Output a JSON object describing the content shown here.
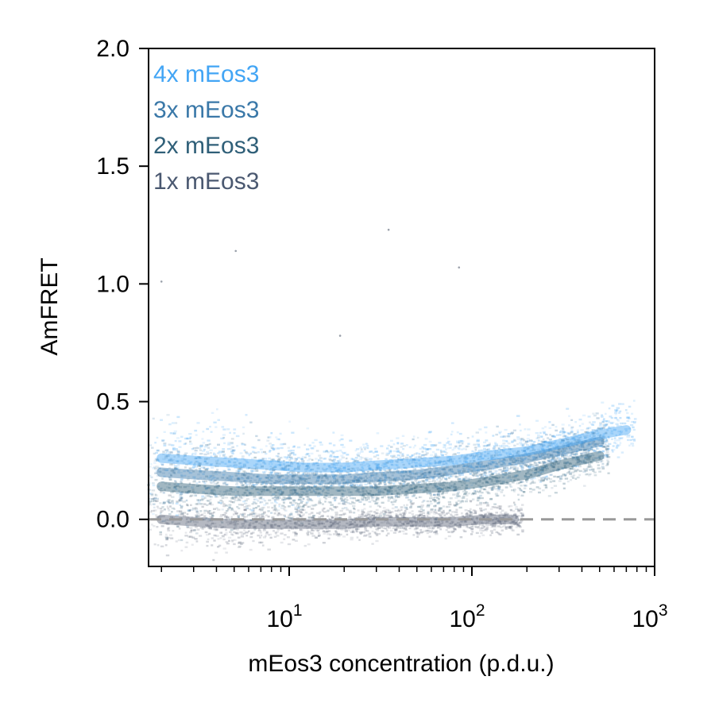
{
  "chart_data": {
    "type": "scatter",
    "title": "",
    "xlabel": "mEos3 concentration (p.d.u.)",
    "ylabel": "AmFRET",
    "x_scale": "log",
    "xlim": [
      1.7,
      1000
    ],
    "ylim": [
      -0.2,
      2.0
    ],
    "grid": false,
    "x_ticks": [
      {
        "value": 10,
        "base": "10",
        "exp": "1"
      },
      {
        "value": 100,
        "base": "10",
        "exp": "2"
      },
      {
        "value": 1000,
        "base": "10",
        "exp": "3"
      }
    ],
    "y_ticks": [
      {
        "value": 0.0,
        "label": "0.0"
      },
      {
        "value": 0.5,
        "label": "0.5"
      },
      {
        "value": 1.0,
        "label": "1.0"
      },
      {
        "value": 1.5,
        "label": "1.5"
      },
      {
        "value": 2.0,
        "label": "2.0"
      }
    ],
    "reference_line": {
      "y": 0.0,
      "style": "dashed",
      "color": "#999999"
    },
    "legend": {
      "placement": "top-left",
      "entries": [
        {
          "label": "4x mEos3",
          "color": "#42a5f5"
        },
        {
          "label": "3x mEos3",
          "color": "#3a78a8"
        },
        {
          "label": "2x mEos3",
          "color": "#2f5f78"
        },
        {
          "label": "1x mEos3",
          "color": "#4a5870"
        }
      ]
    },
    "series": [
      {
        "name": "1x mEos3",
        "color": "#5a6478",
        "x": [
          2,
          3,
          5,
          8,
          12,
          20,
          30,
          50,
          80,
          120,
          170
        ],
        "y": [
          0.0,
          -0.01,
          -0.02,
          -0.02,
          -0.02,
          -0.02,
          -0.01,
          -0.01,
          -0.01,
          0.0,
          0.0
        ]
      },
      {
        "name": "2x mEos3",
        "color": "#2f5f78",
        "x": [
          2,
          3,
          5,
          8,
          12,
          20,
          30,
          50,
          80,
          120,
          200,
          300,
          500
        ],
        "y": [
          0.14,
          0.13,
          0.12,
          0.12,
          0.12,
          0.12,
          0.12,
          0.13,
          0.14,
          0.16,
          0.19,
          0.23,
          0.27
        ]
      },
      {
        "name": "3x mEos3",
        "color": "#3a78a8",
        "x": [
          2,
          3,
          5,
          8,
          12,
          20,
          30,
          50,
          80,
          120,
          200,
          300,
          500
        ],
        "y": [
          0.2,
          0.19,
          0.18,
          0.17,
          0.17,
          0.17,
          0.18,
          0.19,
          0.21,
          0.23,
          0.26,
          0.29,
          0.33
        ]
      },
      {
        "name": "4x mEos3",
        "color": "#42a5f5",
        "x": [
          2,
          3,
          5,
          8,
          12,
          20,
          30,
          50,
          80,
          120,
          200,
          300,
          500,
          700
        ],
        "y": [
          0.26,
          0.25,
          0.24,
          0.23,
          0.22,
          0.22,
          0.23,
          0.24,
          0.25,
          0.27,
          0.29,
          0.32,
          0.36,
          0.38
        ]
      }
    ],
    "outliers": [
      {
        "x": 2.0,
        "y": 1.01
      },
      {
        "x": 5.1,
        "y": 1.14
      },
      {
        "x": 35,
        "y": 1.23
      },
      {
        "x": 85,
        "y": 1.07
      },
      {
        "x": 19,
        "y": 0.78
      }
    ]
  }
}
